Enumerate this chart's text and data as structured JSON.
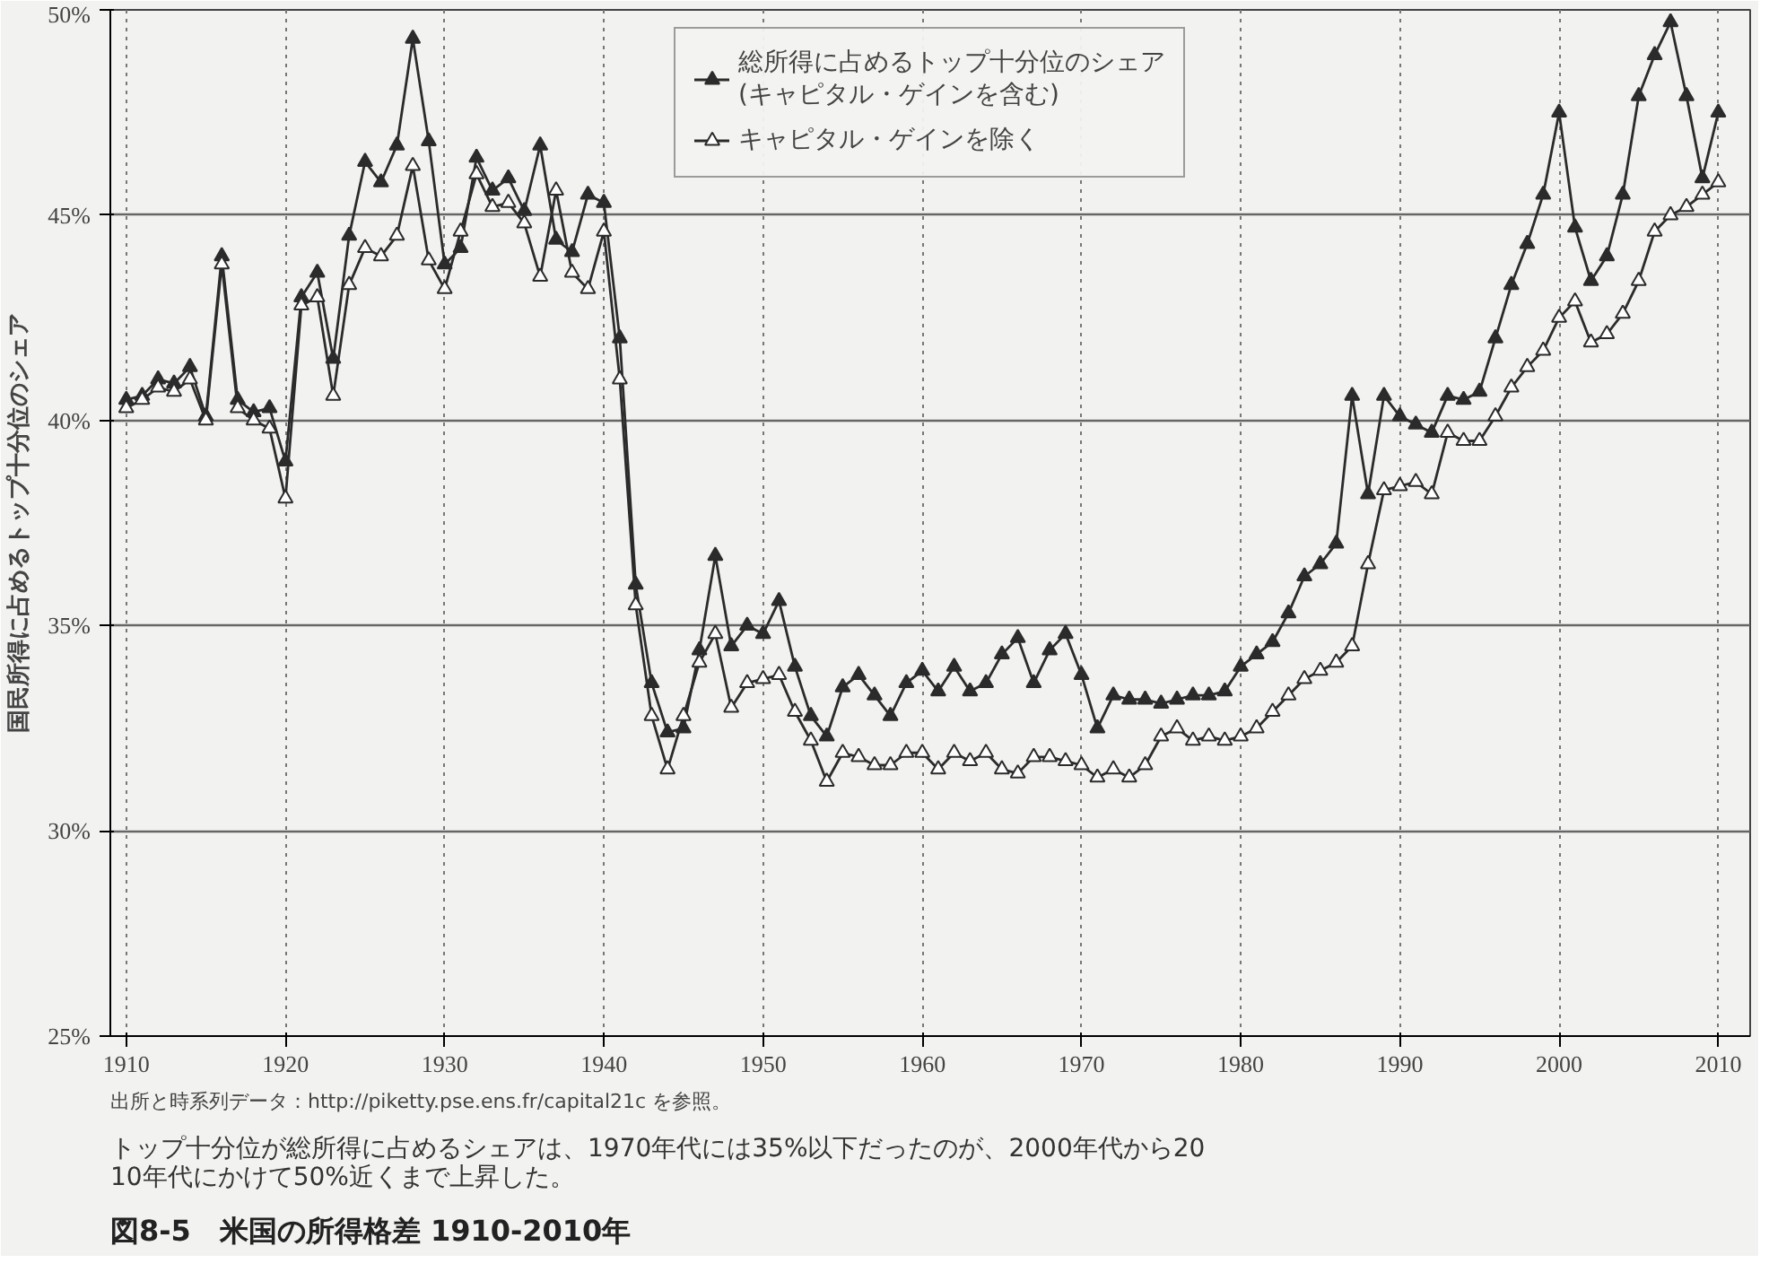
{
  "chart_data": {
    "type": "line",
    "title": "図8-5　米国の所得格差 1910-2010年",
    "subtitle": "トップ十分位が総所得に占めるシェアは、1970年代には35%以下だったのが、2000年代から2010年代にかけて50%近くまで上昇した。",
    "annotations": [
      "出所と時系列データ：http://piketty.pse.ens.fr/capital21c を参照。"
    ],
    "ylabel": "国民所得に占めるトップ十分位のシェア",
    "x": [
      1910,
      1911,
      1912,
      1913,
      1914,
      1915,
      1916,
      1917,
      1918,
      1919,
      1920,
      1921,
      1922,
      1923,
      1924,
      1925,
      1926,
      1927,
      1928,
      1929,
      1930,
      1931,
      1932,
      1933,
      1934,
      1935,
      1936,
      1937,
      1938,
      1939,
      1940,
      1941,
      1942,
      1943,
      1944,
      1945,
      1946,
      1947,
      1948,
      1949,
      1950,
      1951,
      1952,
      1953,
      1954,
      1955,
      1956,
      1957,
      1958,
      1959,
      1960,
      1961,
      1962,
      1963,
      1964,
      1965,
      1966,
      1967,
      1968,
      1969,
      1970,
      1971,
      1972,
      1973,
      1974,
      1975,
      1976,
      1977,
      1978,
      1979,
      1980,
      1981,
      1982,
      1983,
      1984,
      1985,
      1986,
      1987,
      1988,
      1989,
      1990,
      1991,
      1992,
      1993,
      1994,
      1995,
      1996,
      1997,
      1998,
      1999,
      2000,
      2001,
      2002,
      2003,
      2004,
      2005,
      2006,
      2007,
      2008,
      2009,
      2010
    ],
    "series": [
      {
        "name": "総所得に占めるトップ十分位のシェア\n(キャピタル・ゲインを含む)",
        "color": "#2b2b2b",
        "values": [
          40.5,
          40.6,
          41.0,
          40.9,
          41.3,
          40.1,
          44.0,
          40.5,
          40.2,
          40.3,
          39.0,
          43.0,
          43.6,
          41.5,
          44.5,
          46.3,
          45.8,
          46.7,
          49.3,
          46.8,
          43.8,
          44.2,
          46.4,
          45.6,
          45.9,
          45.1,
          46.7,
          44.4,
          44.1,
          45.5,
          45.3,
          42.0,
          36.0,
          33.6,
          32.4,
          32.5,
          34.4,
          36.7,
          34.5,
          35.0,
          34.8,
          35.6,
          34.0,
          32.8,
          32.3,
          33.5,
          33.8,
          33.3,
          32.8,
          33.6,
          33.9,
          33.4,
          34.0,
          33.4,
          33.6,
          34.3,
          34.7,
          33.6,
          34.4,
          34.8,
          33.8,
          32.5,
          33.3,
          33.2,
          33.2,
          33.1,
          33.2,
          33.3,
          33.3,
          33.4,
          34.0,
          34.3,
          34.6,
          35.3,
          36.2,
          36.5,
          37.0,
          40.6,
          38.2,
          40.6,
          40.1,
          39.9,
          39.7,
          40.6,
          40.5,
          40.7,
          42.0,
          43.3,
          44.3,
          45.5,
          47.5,
          44.7,
          43.4,
          44.0,
          45.5,
          47.9,
          48.9,
          49.7,
          47.9,
          45.9,
          47.5
        ]
      },
      {
        "name": "キャピタル・ゲインを除く",
        "color": "#2b2b2b",
        "values": [
          40.3,
          40.5,
          40.8,
          40.7,
          41.0,
          40.0,
          43.8,
          40.3,
          40.0,
          39.8,
          38.1,
          42.8,
          43.0,
          40.6,
          43.3,
          44.2,
          44.0,
          44.5,
          46.2,
          43.9,
          43.2,
          44.6,
          46.0,
          45.2,
          45.3,
          44.8,
          43.5,
          45.6,
          43.6,
          43.2,
          44.6,
          41.0,
          35.5,
          32.8,
          31.5,
          32.8,
          34.1,
          34.8,
          33.0,
          33.6,
          33.7,
          33.8,
          32.9,
          32.2,
          31.2,
          31.9,
          31.8,
          31.6,
          31.6,
          31.9,
          31.9,
          31.5,
          31.9,
          31.7,
          31.9,
          31.5,
          31.4,
          31.8,
          31.8,
          31.7,
          31.6,
          31.3,
          31.5,
          31.3,
          31.6,
          32.3,
          32.5,
          32.2,
          32.3,
          32.2,
          32.3,
          32.5,
          32.9,
          33.3,
          33.7,
          33.9,
          34.1,
          34.5,
          36.5,
          38.3,
          38.4,
          38.5,
          38.2,
          39.7,
          39.5,
          39.5,
          40.1,
          40.8,
          41.3,
          41.7,
          42.5,
          42.9,
          41.9,
          42.1,
          42.6,
          43.4,
          44.6,
          45.0,
          45.2,
          45.5,
          45.8
        ]
      }
    ],
    "xlim": [
      1909,
      2012
    ],
    "xticks": [
      1910,
      1920,
      1930,
      1940,
      1950,
      1960,
      1970,
      1980,
      1990,
      2000,
      2010
    ],
    "ylim": [
      25,
      50
    ],
    "yticks": [
      {
        "value": 25,
        "label": "25%"
      },
      {
        "value": 30,
        "label": "30%"
      },
      {
        "value": 35,
        "label": "35%"
      },
      {
        "value": 40,
        "label": "40%"
      },
      {
        "value": 45,
        "label": "45%"
      },
      {
        "value": 50,
        "label": "50%"
      }
    ],
    "grid": true,
    "legend": "top",
    "marker": "triangle",
    "line_style": "solid"
  }
}
